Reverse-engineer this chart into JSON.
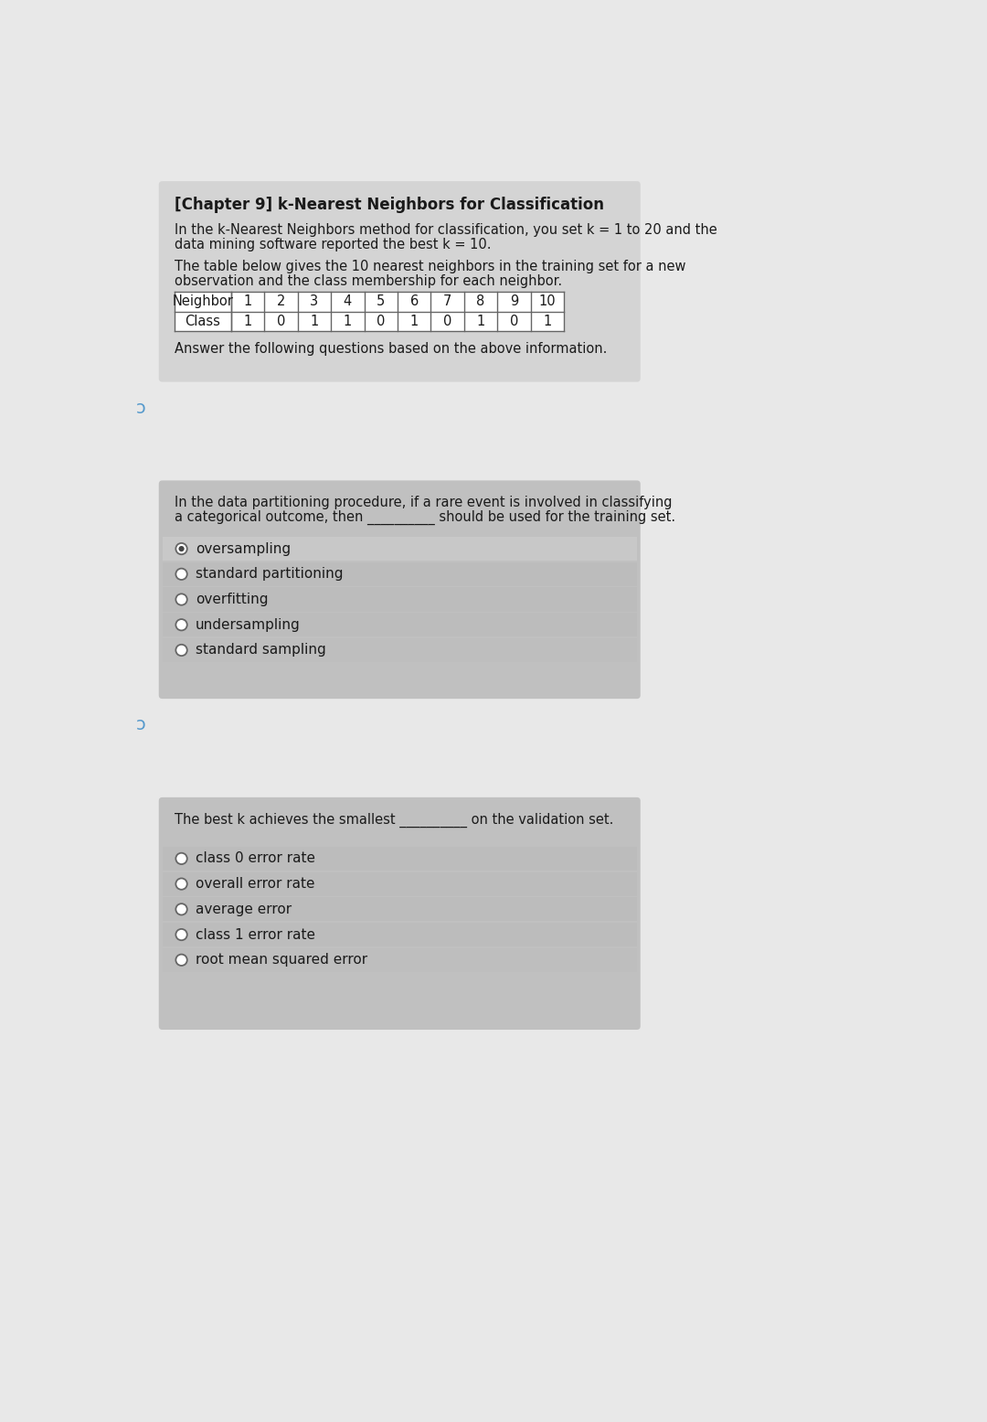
{
  "title": "[Chapter 9] k-Nearest Neighbors for Classification",
  "intro_text1": "In the k-Nearest Neighbors method for classification, you set k = 1 to 20 and the",
  "intro_text2": "data mining software reported the best k = 10.",
  "intro_text3": "The table below gives the 10 nearest neighbors in the training set for a new",
  "intro_text4": "observation and the class membership for each neighbor.",
  "neighbor_row": [
    1,
    2,
    3,
    4,
    5,
    6,
    7,
    8,
    9,
    10
  ],
  "class_row": [
    1,
    0,
    1,
    1,
    0,
    1,
    0,
    1,
    0,
    1
  ],
  "answer_text": "Answer the following questions based on the above information.",
  "q1_text1": "In the data partitioning procedure, if a rare event is involved in classifying",
  "q1_text2": "a categorical outcome, then __________ should be used for the training set.",
  "q1_options": [
    "oversampling",
    "standard partitioning",
    "overfitting",
    "undersampling",
    "standard sampling"
  ],
  "q1_selected": 0,
  "q2_text": "The best k achieves the smallest __________ on the validation set.",
  "q2_options": [
    "class 0 error rate",
    "overall error rate",
    "average error",
    "class 1 error rate",
    "root mean squared error"
  ],
  "q2_selected": -1,
  "page_bg": "#e8e8e8",
  "panel1_bg": "#d4d4d4",
  "panel2_bg": "#c0c0c0",
  "panel3_bg": "#c0c0c0",
  "option_highlight": "#c8c8c8",
  "option_normal": "#bcbcbc",
  "option_last_highlight": "#bebebe",
  "table_line_color": "#666666",
  "text_color": "#1a1a1a",
  "arrow_color": "#5599cc"
}
